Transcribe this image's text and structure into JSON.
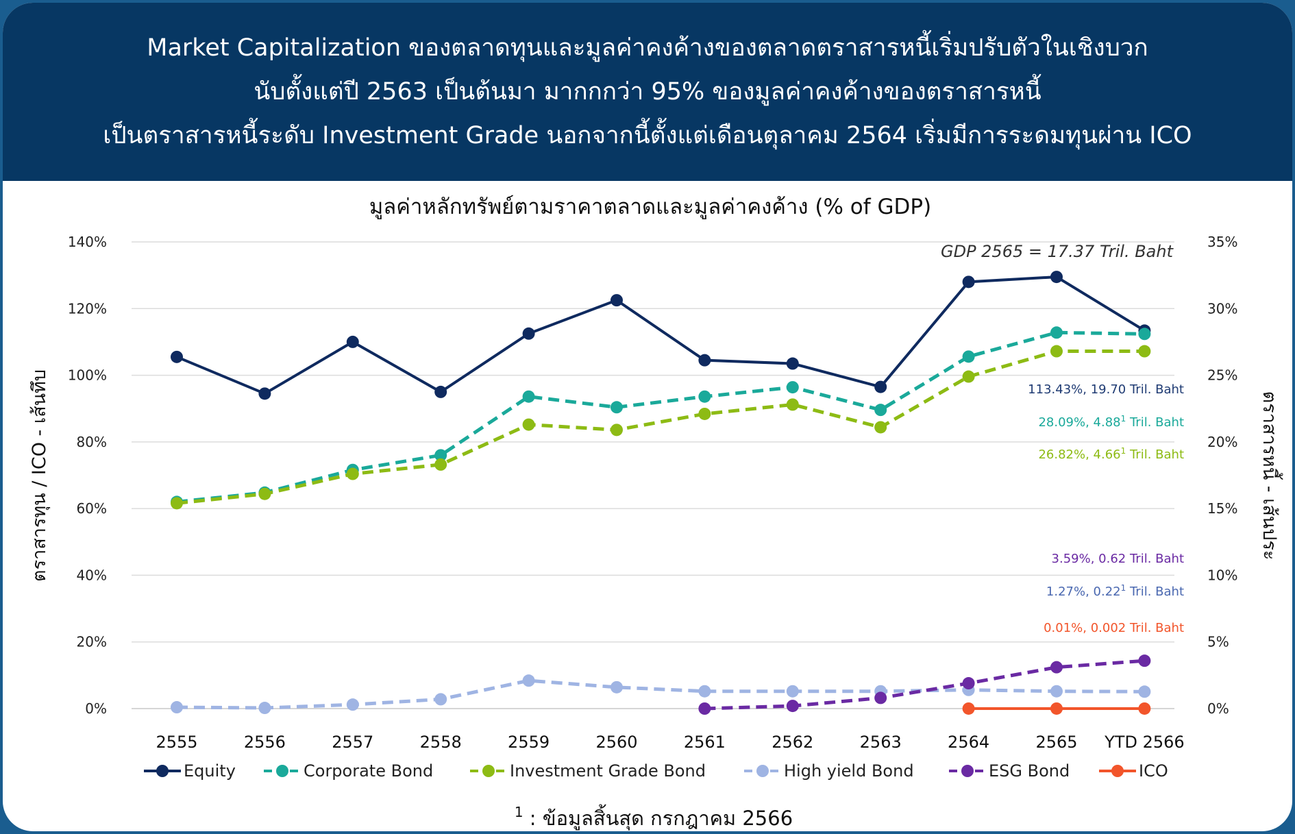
{
  "banner": {
    "line1": "Market Capitalization ของตลาดทุนและมูลค่าคงค้างของตลาดตราสารหนี้เริ่มปรับตัวในเชิงบวก",
    "line2": "นับตั้งแต่ปี 2563 เป็นต้นมา มากกกว่า 95% ของมูลค่าคงค้างของตราสารหนี้",
    "line3": "เป็นตราสารหนี้ระดับ Investment Grade นอกจากนี้ตั้งแต่เดือนตุลาคม 2564 เริ่มมีการระดมทุนผ่าน ICO"
  },
  "chart_data": {
    "type": "line",
    "title": "มูลค่าหลักทรัพย์ตามราคาตลาดและมูลค่าคงค้าง (% of GDP)",
    "ylabel_left": "ตราสารทุน / ICO - เส้นทึบ",
    "ylabel_right": "ตราสารหนี้ - เส้นประ",
    "ylim_left": [
      0,
      140
    ],
    "ylim_right": [
      0,
      35
    ],
    "yticks_left": [
      "0%",
      "20%",
      "40%",
      "60%",
      "80%",
      "100%",
      "120%",
      "140%"
    ],
    "yticks_right": [
      "0%",
      "5%",
      "10%",
      "15%",
      "20%",
      "25%",
      "30%",
      "35%"
    ],
    "categories": [
      "2555",
      "2556",
      "2557",
      "2558",
      "2559",
      "2560",
      "2561",
      "2562",
      "2563",
      "2564",
      "2565",
      "YTD 2566"
    ],
    "grid": true,
    "legend_position": "bottom",
    "series": [
      {
        "name": "Equity",
        "axis": "left",
        "style": "solid",
        "color": "#0f2a5f",
        "values": [
          105.5,
          94.5,
          110,
          95,
          112.5,
          122.5,
          104.5,
          103.5,
          96.5,
          128,
          129.5,
          113.4
        ]
      },
      {
        "name": "Corporate Bond",
        "axis": "right",
        "style": "dashed",
        "color": "#1aa99a",
        "values": [
          15.5,
          16.2,
          17.9,
          19.0,
          23.4,
          22.6,
          23.4,
          24.1,
          22.4,
          26.4,
          28.2,
          28.1
        ]
      },
      {
        "name": "Investment Grade Bond",
        "axis": "right",
        "style": "dashed",
        "color": "#8dbb14",
        "values": [
          15.4,
          16.1,
          17.6,
          18.3,
          21.3,
          20.9,
          22.1,
          22.8,
          21.1,
          24.9,
          26.8,
          26.8
        ]
      },
      {
        "name": "High yield Bond",
        "axis": "right",
        "style": "dashed",
        "color": "#9fb4e3",
        "values": [
          0.1,
          0.05,
          0.3,
          0.7,
          2.1,
          1.6,
          1.3,
          1.3,
          1.3,
          1.4,
          1.3,
          1.27
        ]
      },
      {
        "name": "ESG Bond",
        "axis": "right",
        "style": "dashed",
        "color": "#6a2aa3",
        "values": [
          null,
          null,
          null,
          null,
          null,
          null,
          0.0,
          0.2,
          0.8,
          1.9,
          3.1,
          3.59
        ]
      },
      {
        "name": "ICO",
        "axis": "left",
        "style": "solid",
        "color": "#f2552b",
        "values": [
          null,
          null,
          null,
          null,
          null,
          null,
          null,
          null,
          null,
          0.01,
          0.01,
          0.01
        ]
      }
    ],
    "annotations": [
      {
        "text": "GDP 2565 = 17.37 Tril. Baht",
        "color": "#333333"
      },
      {
        "text": "113.43%, 19.70 Tril. Baht",
        "color": "#1f3b73"
      },
      {
        "text": "28.09%, 4.88",
        "sup": "1",
        "suffix": " Tril. Baht",
        "color": "#1aa99a"
      },
      {
        "text": "26.82%, 4.66",
        "sup": "1",
        "suffix": " Tril. Baht",
        "color": "#8dbb14"
      },
      {
        "text": "3.59%, 0.62 Tril. Baht",
        "color": "#6a2aa3"
      },
      {
        "text": "1.27%, 0.22",
        "sup": "1",
        "suffix": " Tril. Baht",
        "color": "#4a68b0"
      },
      {
        "text": "0.01%, 0.002 Tril. Baht",
        "color": "#f2552b"
      }
    ]
  },
  "footnote": {
    "sup": "1",
    "text": " : ข้อมูลสิ้นสุด กรกฎาคม 2566"
  }
}
